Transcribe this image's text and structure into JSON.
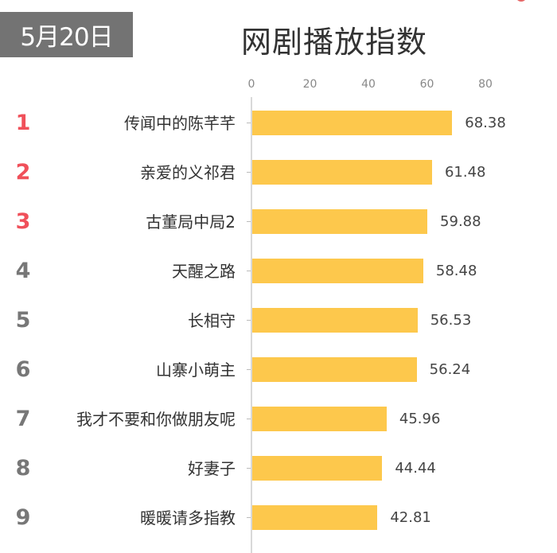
{
  "header": {
    "date_badge": "5月20日",
    "title": "网剧播放指数"
  },
  "colors": {
    "bar": "#fdc84c",
    "rank_top3": "#f0505a",
    "rank_other": "#777777",
    "badge_bg": "#737373"
  },
  "axis": {
    "ticks": [
      "0",
      "20",
      "40",
      "60",
      "80"
    ]
  },
  "rows": [
    {
      "rank": "1",
      "name": "传闻中的陈芊芊",
      "value": "68.38"
    },
    {
      "rank": "2",
      "name": "亲爱的义祁君",
      "value": "61.48"
    },
    {
      "rank": "3",
      "name": "古董局中局2",
      "value": "59.88"
    },
    {
      "rank": "4",
      "name": "天醒之路",
      "value": "58.48"
    },
    {
      "rank": "5",
      "name": "长相守",
      "value": "56.53"
    },
    {
      "rank": "6",
      "name": "山寨小萌主",
      "value": "56.24"
    },
    {
      "rank": "7",
      "name": "我才不要和你做朋友呢",
      "value": "45.96"
    },
    {
      "rank": "8",
      "name": "好妻子",
      "value": "44.44"
    },
    {
      "rank": "9",
      "name": "暖暖请多指教",
      "value": "42.81"
    }
  ],
  "chart_data": {
    "type": "bar",
    "orientation": "horizontal",
    "title": "网剧播放指数",
    "subtitle": "5月20日",
    "categories": [
      "传闻中的陈芊芊",
      "亲爱的义祁君",
      "古董局中局2",
      "天醒之路",
      "长相守",
      "山寨小萌主",
      "我才不要和你做朋友呢",
      "好妻子",
      "暖暖请多指教"
    ],
    "values": [
      68.38,
      61.48,
      59.88,
      58.48,
      56.53,
      56.24,
      45.96,
      44.44,
      42.81
    ],
    "xlabel": "",
    "ylabel": "",
    "xlim": [
      0,
      80
    ],
    "xticks": [
      0,
      20,
      40,
      60,
      80
    ],
    "axis_position": "top",
    "grid": false,
    "legend": null,
    "data_labels": true,
    "bar_color": "#fdc84c"
  }
}
